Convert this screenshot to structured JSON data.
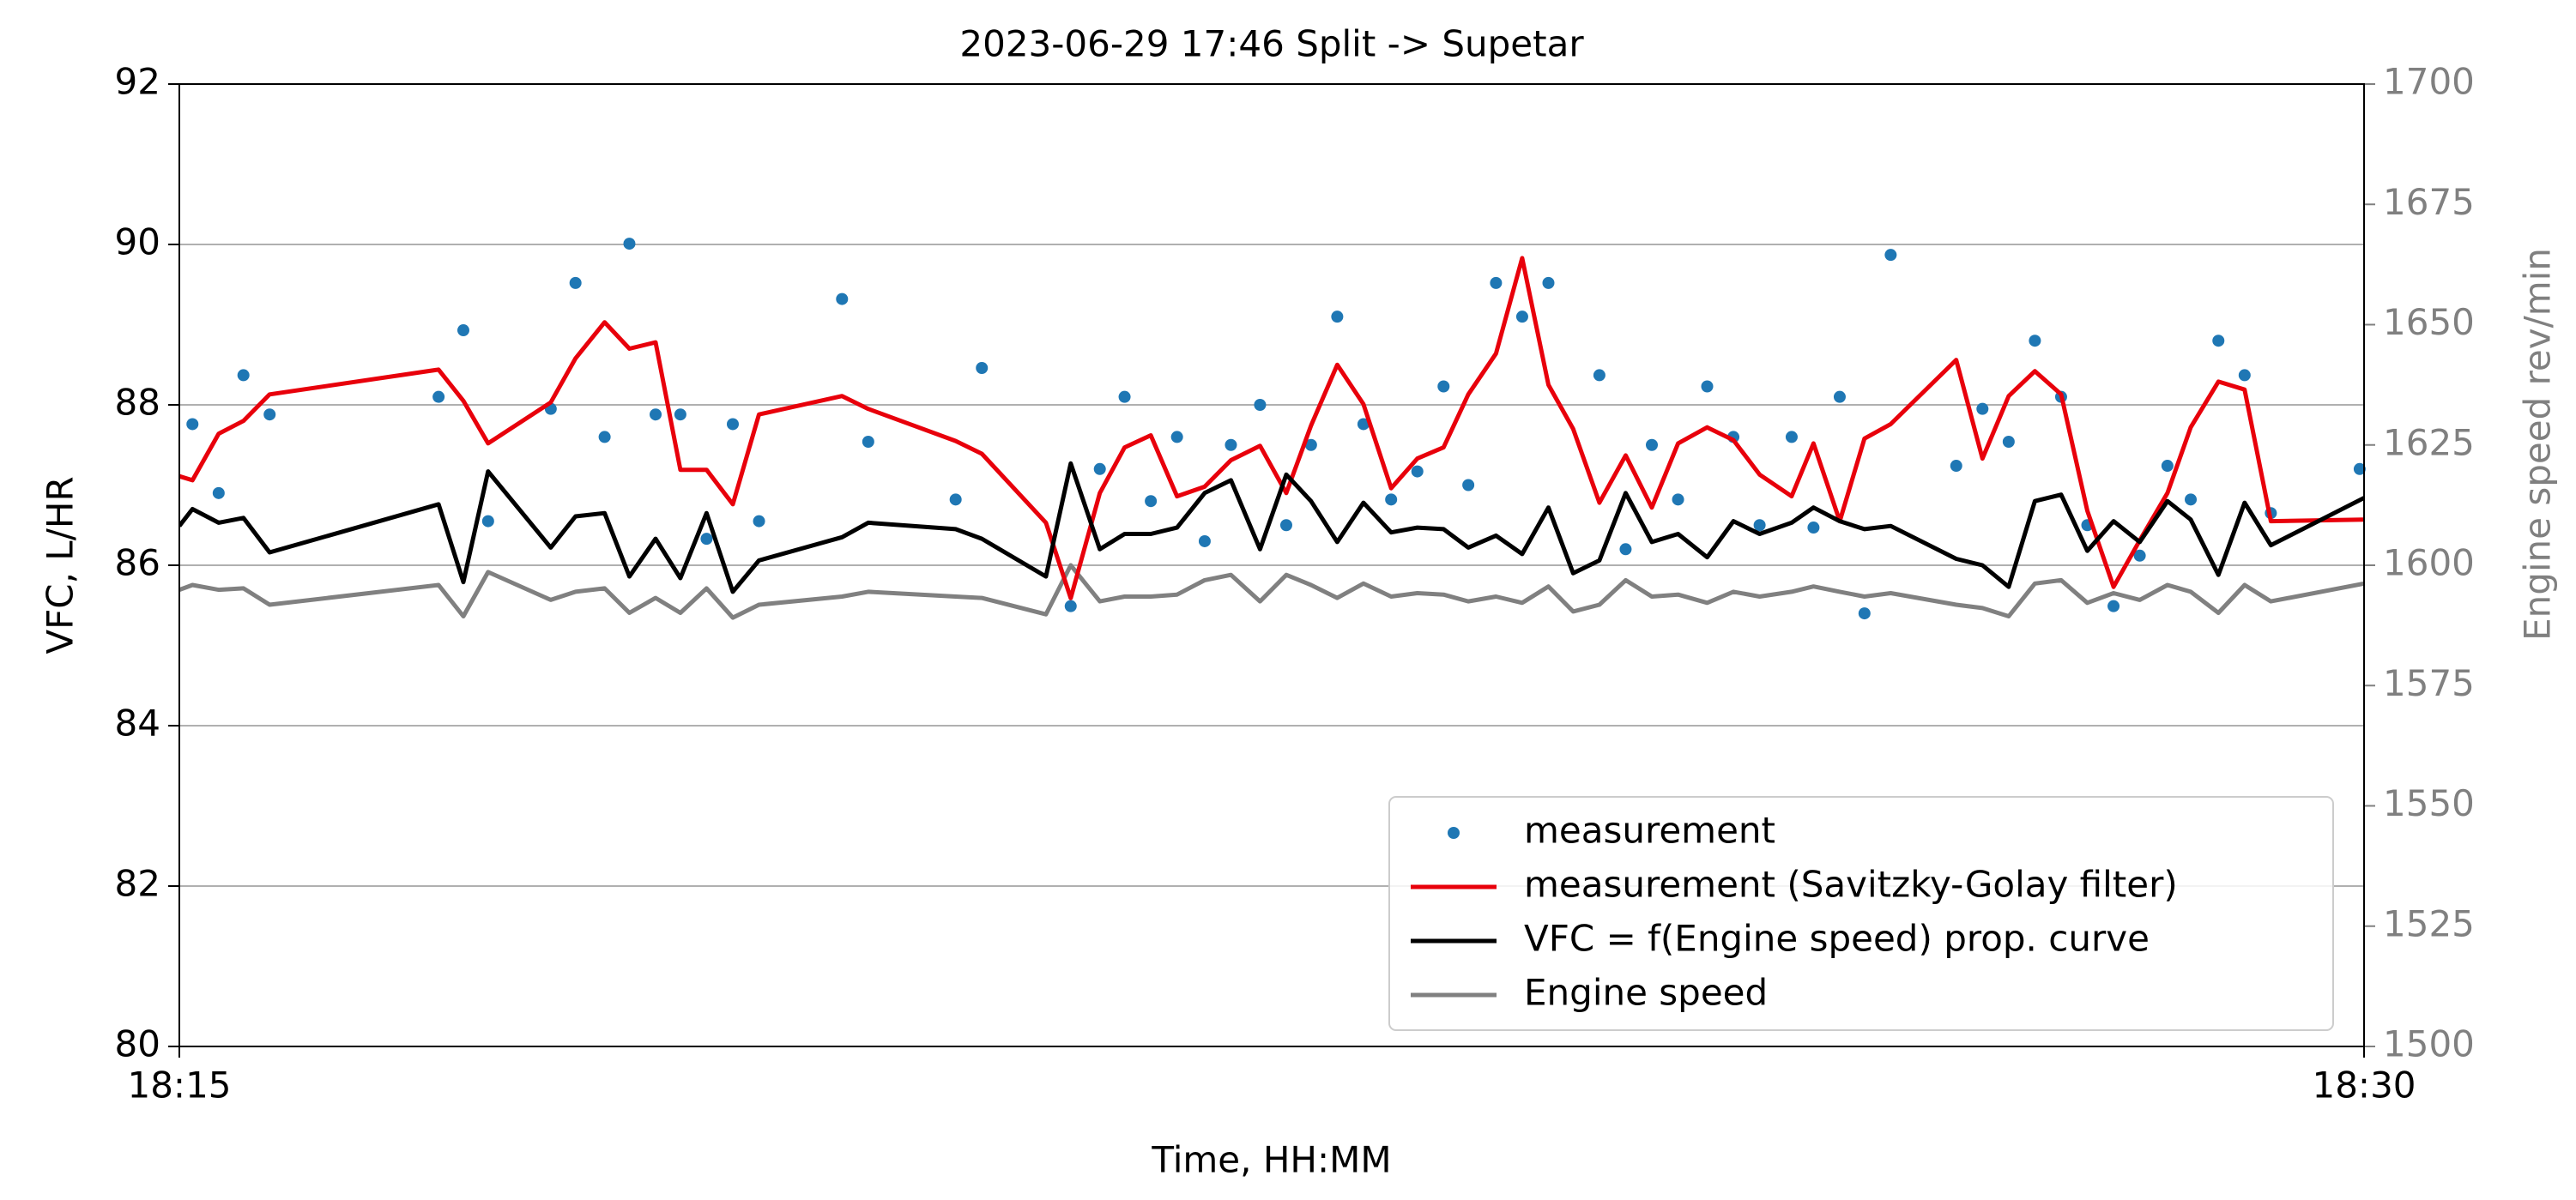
{
  "chart_data": {
    "type": "line",
    "title": "2023-06-29  17:46 Split -> Supetar",
    "xlabel": "Time, HH:MM",
    "ylabel": "VFC, L/HR",
    "y2label": "Engine speed rev/min",
    "xlim": [
      0,
      15
    ],
    "xticks": [
      {
        "value": 0,
        "label": "18:15"
      },
      {
        "value": 15,
        "label": "18:30"
      }
    ],
    "ylim": [
      80,
      92
    ],
    "yticks": [
      80,
      82,
      84,
      86,
      88,
      90,
      92
    ],
    "y2lim": [
      1500,
      1700
    ],
    "y2ticks": [
      1500,
      1525,
      1550,
      1575,
      1600,
      1625,
      1650,
      1675,
      1700
    ],
    "grid": "y",
    "legend": "lower right",
    "x": [
      0,
      0.09,
      0.27,
      0.44,
      0.62,
      1.78,
      1.95,
      2.12,
      2.55,
      2.72,
      2.92,
      3.09,
      3.27,
      3.44,
      3.62,
      3.8,
      3.98,
      4.55,
      4.73,
      5.33,
      5.51,
      5.95,
      6.12,
      6.32,
      6.49,
      6.67,
      6.85,
      7.04,
      7.22,
      7.42,
      7.6,
      7.77,
      7.95,
      8.13,
      8.32,
      8.5,
      8.68,
      8.85,
      9.04,
      9.22,
      9.4,
      9.57,
      9.75,
      9.93,
      10.11,
      10.29,
      10.49,
      10.67,
      10.85,
      11.07,
      11.22,
      11.4,
      11.57,
      11.75,
      12.2,
      12.38,
      12.56,
      12.74,
      12.92,
      13.1,
      13.28,
      13.46,
      13.65,
      13.81,
      14.0,
      14.18,
      14.36,
      15
    ],
    "series": [
      {
        "name": "measurement",
        "type": "scatter",
        "color": "#1f77b4",
        "x": [
          0.09,
          0.27,
          0.44,
          0.62,
          1.78,
          1.95,
          2.12,
          2.55,
          2.72,
          2.92,
          3.09,
          3.27,
          3.44,
          3.62,
          3.8,
          3.98,
          4.55,
          4.73,
          5.33,
          5.51,
          6.12,
          6.32,
          6.49,
          6.67,
          6.85,
          7.04,
          7.22,
          7.42,
          7.6,
          7.77,
          7.95,
          8.13,
          8.32,
          8.5,
          8.68,
          8.85,
          9.04,
          9.22,
          9.4,
          9.75,
          9.93,
          10.11,
          10.29,
          10.49,
          10.67,
          10.85,
          11.07,
          11.22,
          11.4,
          11.57,
          11.75,
          12.2,
          12.38,
          12.56,
          12.74,
          12.92,
          13.1,
          13.28,
          13.46,
          13.65,
          13.81,
          14.0,
          14.18,
          14.36,
          14.97
        ],
        "values": [
          87.76,
          86.9,
          88.37,
          87.88,
          88.1,
          88.93,
          86.55,
          87.95,
          89.52,
          87.6,
          90.01,
          87.88,
          87.88,
          86.33,
          87.76,
          86.55,
          89.32,
          87.54,
          86.82,
          88.46,
          85.49,
          87.2,
          88.1,
          86.8,
          87.6,
          86.3,
          87.5,
          88.0,
          86.5,
          87.5,
          89.1,
          87.76,
          86.82,
          87.17,
          88.23,
          87.0,
          89.52,
          89.1,
          89.52,
          88.37,
          86.2,
          87.5,
          86.82,
          88.23,
          87.6,
          86.5,
          87.6,
          86.47,
          88.1,
          85.4,
          89.87,
          87.24,
          87.95,
          87.54,
          88.8,
          88.1,
          86.5,
          85.49,
          86.12,
          87.24,
          86.82,
          88.8,
          88.37,
          86.65,
          87.2
        ]
      },
      {
        "name": "measurement (Savitzky-Golay filter)",
        "type": "line",
        "color": "#e8000b",
        "values": [
          87.11,
          87.06,
          87.64,
          87.8,
          88.13,
          88.44,
          88.05,
          87.52,
          88.03,
          88.58,
          89.03,
          88.7,
          88.78,
          87.19,
          87.19,
          86.76,
          87.88,
          88.11,
          87.95,
          87.55,
          87.39,
          86.53,
          85.59,
          86.9,
          87.47,
          87.62,
          86.86,
          86.98,
          87.31,
          87.49,
          86.9,
          87.74,
          88.5,
          88.01,
          86.96,
          87.33,
          87.47,
          88.13,
          88.64,
          89.83,
          88.25,
          87.7,
          86.78,
          87.37,
          86.72,
          87.52,
          87.72,
          87.56,
          87.13,
          86.86,
          87.52,
          86.55,
          87.58,
          87.76,
          88.56,
          87.33,
          88.11,
          88.42,
          88.13,
          86.68,
          85.73,
          86.31,
          86.9,
          87.72,
          88.29,
          88.19,
          86.55,
          86.57
        ]
      },
      {
        "name": "VFC = f(Engine speed) prop. curve",
        "type": "line",
        "color": "#000000",
        "values": [
          86.49,
          86.7,
          86.53,
          86.59,
          86.16,
          86.76,
          85.79,
          87.17,
          86.22,
          86.61,
          86.65,
          85.86,
          86.33,
          85.84,
          86.65,
          85.67,
          86.06,
          86.35,
          86.53,
          86.45,
          86.33,
          85.86,
          87.27,
          86.2,
          86.39,
          86.39,
          86.47,
          86.9,
          87.06,
          86.2,
          87.13,
          86.8,
          86.29,
          86.78,
          86.41,
          86.47,
          86.45,
          86.22,
          86.37,
          86.14,
          86.72,
          85.9,
          86.06,
          86.9,
          86.29,
          86.39,
          86.1,
          86.55,
          86.39,
          86.53,
          86.72,
          86.55,
          86.45,
          86.49,
          86.08,
          86.0,
          85.73,
          86.8,
          86.88,
          86.18,
          86.55,
          86.29,
          86.8,
          86.57,
          85.88,
          86.78,
          86.25,
          86.84
        ]
      },
      {
        "name": "Engine speed",
        "type": "line",
        "color": "#808080",
        "axis": "y2",
        "values": [
          1594.9,
          1595.9,
          1594.9,
          1595.2,
          1591.8,
          1595.9,
          1589.4,
          1598.6,
          1592.8,
          1594.5,
          1595.2,
          1590.1,
          1593.2,
          1590.1,
          1595.2,
          1589.1,
          1591.8,
          1593.5,
          1594.5,
          1593.5,
          1593.2,
          1589.8,
          1600,
          1592.5,
          1593.5,
          1593.5,
          1593.9,
          1596.9,
          1598,
          1592.5,
          1598,
          1595.9,
          1593.2,
          1596.2,
          1593.5,
          1594.2,
          1593.9,
          1592.5,
          1593.5,
          1592.2,
          1595.6,
          1590.4,
          1591.8,
          1596.9,
          1593.5,
          1593.9,
          1592.2,
          1594.5,
          1593.5,
          1594.5,
          1595.6,
          1594.5,
          1593.5,
          1594.2,
          1591.8,
          1591.1,
          1589.4,
          1596.2,
          1596.9,
          1592.2,
          1594.2,
          1592.8,
          1595.9,
          1594.5,
          1590.1,
          1595.9,
          1592.5,
          1596.2
        ]
      }
    ]
  }
}
